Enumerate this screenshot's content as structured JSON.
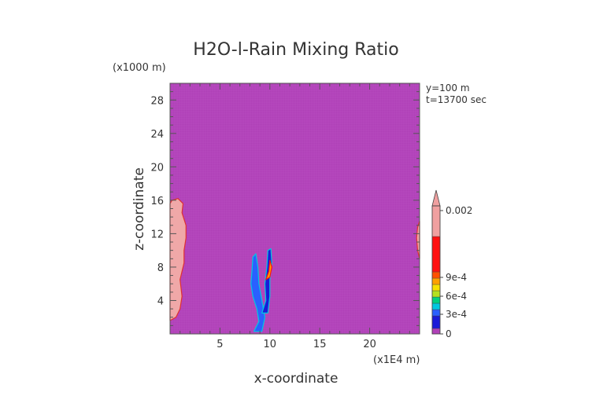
{
  "chart_data": {
    "type": "heatmap",
    "title": "H2O-l-Rain Mixing Ratio",
    "xlabel": "x-coordinate",
    "ylabel": "z-coordinate",
    "x_unit": "(x1E4 m)",
    "y_unit": "(x1000 m)",
    "info": [
      "y=100 m",
      "t=13700 sec"
    ],
    "xlim": [
      0,
      25
    ],
    "ylim": [
      0,
      30
    ],
    "x_ticks": [
      5,
      10,
      15,
      20
    ],
    "y_ticks": [
      4,
      8,
      12,
      16,
      20,
      24,
      28
    ],
    "background_value": 0,
    "background_color": "#b040b8",
    "colorbar": {
      "labels": [
        {
          "value": 0,
          "text": "0"
        },
        {
          "value": 0.0003,
          "text": "3e-4"
        },
        {
          "value": 0.0006,
          "text": "6e-4"
        },
        {
          "value": 0.0009,
          "text": "9e-4"
        },
        {
          "value": 0.002,
          "text": "0.002"
        }
      ],
      "colors": [
        "#b040b8",
        "#1a1ad8",
        "#2a60ff",
        "#00c8e0",
        "#00d080",
        "#b4e020",
        "#f8e000",
        "#ffa000",
        "#ff5000",
        "#ff1010",
        "#f0a0a0"
      ],
      "extend": "max"
    },
    "regions": [
      {
        "name": "left-edge-rain-core",
        "color": "#f0a8a8",
        "outline": "#e03030",
        "points": [
          [
            0,
            1.6
          ],
          [
            0.6,
            2.0
          ],
          [
            1.0,
            3.0
          ],
          [
            1.2,
            4.5
          ],
          [
            1.0,
            6.5
          ],
          [
            1.4,
            8.5
          ],
          [
            1.4,
            10.0
          ],
          [
            1.6,
            11.5
          ],
          [
            1.6,
            13.0
          ],
          [
            1.2,
            14.5
          ],
          [
            1.3,
            15.6
          ],
          [
            0.8,
            16.2
          ],
          [
            0.2,
            16.0
          ],
          [
            0,
            15.6
          ]
        ]
      },
      {
        "name": "right-edge-rain-core",
        "color": "#f0a8a8",
        "outline": "#e03030",
        "points": [
          [
            25,
            9.0
          ],
          [
            24.8,
            10.0
          ],
          [
            24.7,
            11.5
          ],
          [
            24.8,
            12.8
          ],
          [
            25,
            13.5
          ]
        ]
      },
      {
        "name": "central-rain-shaft-1",
        "color": "#2a60ff",
        "outline": "#00c8e0",
        "points": [
          [
            8.4,
            0.3
          ],
          [
            8.9,
            1.5
          ],
          [
            8.7,
            3.0
          ],
          [
            8.3,
            4.5
          ],
          [
            8.1,
            6.0
          ],
          [
            8.2,
            7.5
          ],
          [
            8.3,
            9.2
          ],
          [
            8.6,
            9.6
          ],
          [
            8.8,
            8.0
          ],
          [
            8.9,
            6.0
          ],
          [
            9.2,
            4.0
          ],
          [
            9.5,
            2.0
          ],
          [
            9.2,
            0.3
          ]
        ]
      },
      {
        "name": "central-rain-shaft-2",
        "color": "#1a1ad8",
        "outline": "#00c8e0",
        "points": [
          [
            9.2,
            2.5
          ],
          [
            9.6,
            4.0
          ],
          [
            9.5,
            6.0
          ],
          [
            9.7,
            8.0
          ],
          [
            9.8,
            10.0
          ],
          [
            10.1,
            10.2
          ],
          [
            10.2,
            8.5
          ],
          [
            10.0,
            6.5
          ],
          [
            10.0,
            4.5
          ],
          [
            9.8,
            2.5
          ]
        ]
      },
      {
        "name": "central-rain-shaft-3",
        "color": "#ffa000",
        "outline": "#ff1010",
        "points": [
          [
            9.6,
            6.5
          ],
          [
            9.9,
            7.5
          ],
          [
            10.0,
            8.8
          ],
          [
            10.2,
            8.0
          ],
          [
            10.0,
            6.8
          ]
        ]
      }
    ]
  }
}
